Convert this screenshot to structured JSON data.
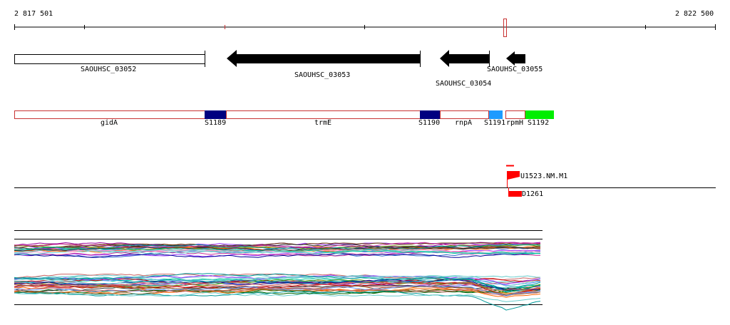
{
  "ruler": {
    "start_label": "2 817 501",
    "end_label": "2 822 500"
  },
  "genes": [
    {
      "label": "SAOUHSC_03052",
      "style": "outline"
    },
    {
      "label": "SAOUHSC_03053",
      "style": "arrow-left"
    },
    {
      "label": "SAOUHSC_03054",
      "style": "arrow-left"
    },
    {
      "label": "SAOUHSC_03055",
      "style": "arrow-left"
    }
  ],
  "features": [
    {
      "label": "gidA",
      "color": "#ffffff",
      "border": "#c83232"
    },
    {
      "label": "S1189",
      "color": "#000080",
      "border": "#000080"
    },
    {
      "label": "trmE",
      "color": "#ffffff",
      "border": "#c83232"
    },
    {
      "label": "S1190",
      "color": "#000080",
      "border": "#000080"
    },
    {
      "label": "rnpA",
      "color": "#ffffff",
      "border": "#c83232"
    },
    {
      "label": "S1191",
      "color": "#1e9bff",
      "border": "#1e9bff"
    },
    {
      "label": "rpmH",
      "color": "#ffffff",
      "border": "#c83232"
    },
    {
      "label": "S1192",
      "color": "#00ee00",
      "border": "#00ee00"
    }
  ],
  "promoters": [
    {
      "label": "U1523.NM.M1",
      "color": "#ff0000"
    },
    {
      "label": "D1261",
      "color": "#ff0000"
    }
  ],
  "colors": {
    "marker": "#c83232",
    "track_line": "#000000"
  }
}
